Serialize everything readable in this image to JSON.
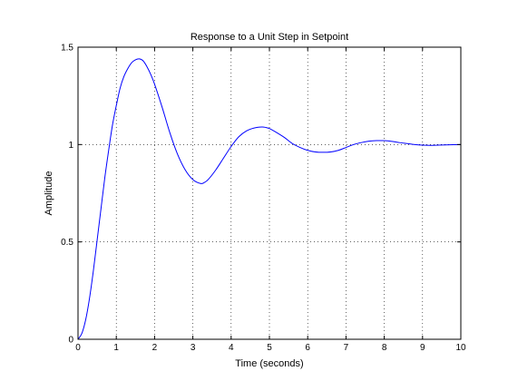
{
  "chart_data": {
    "type": "line",
    "title": "Response to a Unit Step in Setpoint",
    "xlabel": "Time (seconds)",
    "ylabel": "Amplitude",
    "xlim": [
      0,
      10
    ],
    "ylim": [
      0,
      1.5
    ],
    "xticks": [
      0,
      1,
      2,
      3,
      4,
      5,
      6,
      7,
      8,
      9,
      10
    ],
    "yticks": [
      0,
      0.5,
      1,
      1.5
    ],
    "xtick_labels": [
      "0",
      "1",
      "2",
      "3",
      "4",
      "5",
      "6",
      "7",
      "8",
      "9",
      "10"
    ],
    "ytick_labels": [
      "0",
      "0.5",
      "1",
      "1.5"
    ],
    "grid": true,
    "series": [
      {
        "color": "#0000ff",
        "x": [
          0,
          0.1,
          0.2,
          0.3,
          0.4,
          0.5,
          0.6,
          0.7,
          0.8,
          0.9,
          1.0,
          1.1,
          1.2,
          1.3,
          1.4,
          1.5,
          1.6,
          1.7,
          1.8,
          1.9,
          2.0,
          2.2,
          2.4,
          2.6,
          2.8,
          3.0,
          3.2,
          3.3,
          3.4,
          3.6,
          3.8,
          4.0,
          4.2,
          4.4,
          4.6,
          4.8,
          4.9,
          5.0,
          5.2,
          5.4,
          5.6,
          5.8,
          6.0,
          6.2,
          6.4,
          6.6,
          6.8,
          7.0,
          7.2,
          7.4,
          7.6,
          7.8,
          8.0,
          8.2,
          8.4,
          8.6,
          8.8,
          9.0,
          9.2,
          9.4,
          9.6,
          9.8,
          10.0
        ],
        "y": [
          0,
          0.03,
          0.1,
          0.21,
          0.35,
          0.51,
          0.67,
          0.83,
          0.97,
          1.1,
          1.2,
          1.29,
          1.35,
          1.39,
          1.42,
          1.435,
          1.44,
          1.43,
          1.4,
          1.36,
          1.31,
          1.19,
          1.06,
          0.95,
          0.87,
          0.82,
          0.8,
          0.805,
          0.82,
          0.87,
          0.93,
          0.99,
          1.04,
          1.07,
          1.085,
          1.09,
          1.088,
          1.082,
          1.06,
          1.035,
          1.005,
          0.985,
          0.97,
          0.962,
          0.96,
          0.962,
          0.97,
          0.985,
          1.0,
          1.01,
          1.017,
          1.02,
          1.02,
          1.016,
          1.01,
          1.005,
          1.0,
          0.997,
          0.996,
          0.997,
          0.998,
          0.999,
          1.0
        ]
      }
    ]
  }
}
